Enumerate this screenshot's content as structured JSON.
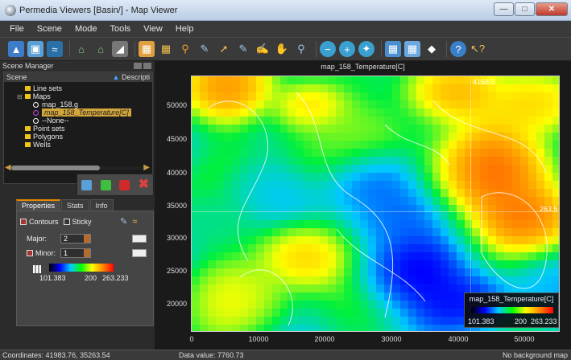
{
  "window": {
    "title": "Permedia Viewers [Basin/] - Map Viewer"
  },
  "menu": [
    "File",
    "Scene",
    "Mode",
    "Tools",
    "View",
    "Help"
  ],
  "dock": {
    "title": "Scene Manager"
  },
  "tree": {
    "header_left": "Scene",
    "header_right": "Descripti",
    "items": [
      "Line sets",
      "Maps",
      "map_158.g",
      "map_158_Temperature[C]",
      "--None--",
      "Point sets",
      "Polygons",
      "Wells"
    ]
  },
  "tabs": [
    "Properties",
    "Stats",
    "Info"
  ],
  "properties": {
    "contours_label": "Contours",
    "sticky_label": "Sticky",
    "major_label": "Major:",
    "major_value": "2",
    "minor_label": "Minor:",
    "minor_value": "1",
    "scale_min": "101.383",
    "scale_mid": "200",
    "scale_max": "263.233"
  },
  "map": {
    "title": "map_158_Temperature[C]",
    "y_ticks": [
      "50000",
      "45000",
      "40000",
      "35000",
      "30000",
      "25000",
      "20000"
    ],
    "x_ticks": [
      "0",
      "10000",
      "20000",
      "30000",
      "40000",
      "50000"
    ],
    "crosshair_x_label": "4168.5",
    "crosshair_y_label": "263.5",
    "legend_title": "map_158_Temperature[C]",
    "legend_min": "101.383",
    "legend_mid": "200",
    "legend_max": "263.233"
  },
  "status": {
    "coordinates": "Coordinates: 41983.76, 35263.54",
    "data_value": "Data value: 7760.73",
    "background": "No background map"
  },
  "colors": {
    "accent": "#e68a00",
    "selection": "#d3a63b"
  }
}
